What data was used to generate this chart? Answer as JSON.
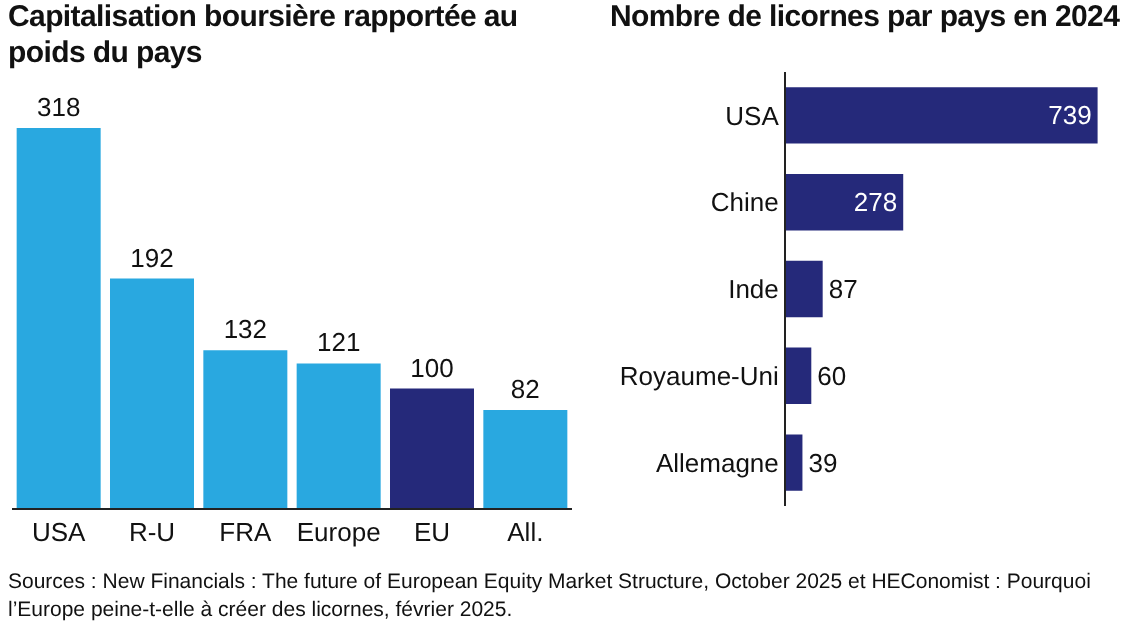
{
  "chart_data": [
    {
      "type": "bar",
      "title": "Capitalisation boursière rapportée au poids du pays",
      "categories": [
        "USA",
        "R-U",
        "FRA",
        "Europe",
        "EU",
        "All."
      ],
      "values": [
        318,
        192,
        132,
        121,
        100,
        82
      ],
      "colors": [
        "#29a8e0",
        "#29a8e0",
        "#29a8e0",
        "#29a8e0",
        "#25297a",
        "#29a8e0"
      ],
      "data_labels": true,
      "annotations": [
        "Sources : New Financials : The future of European Equity Market Structure, October 2025 et HEConomist : Pourquoi l’Europe peine-t-elle à créer des licornes, février 2025."
      ]
    },
    {
      "type": "bar",
      "orientation": "horizontal",
      "title": "Nombre de licornes par pays en 2024",
      "categories": [
        "USA",
        "Chine",
        "Inde",
        "Royaume-Uni",
        "Allemagne"
      ],
      "values": [
        739,
        278,
        87,
        60,
        39
      ],
      "color": "#25297a",
      "data_labels": true
    }
  ]
}
